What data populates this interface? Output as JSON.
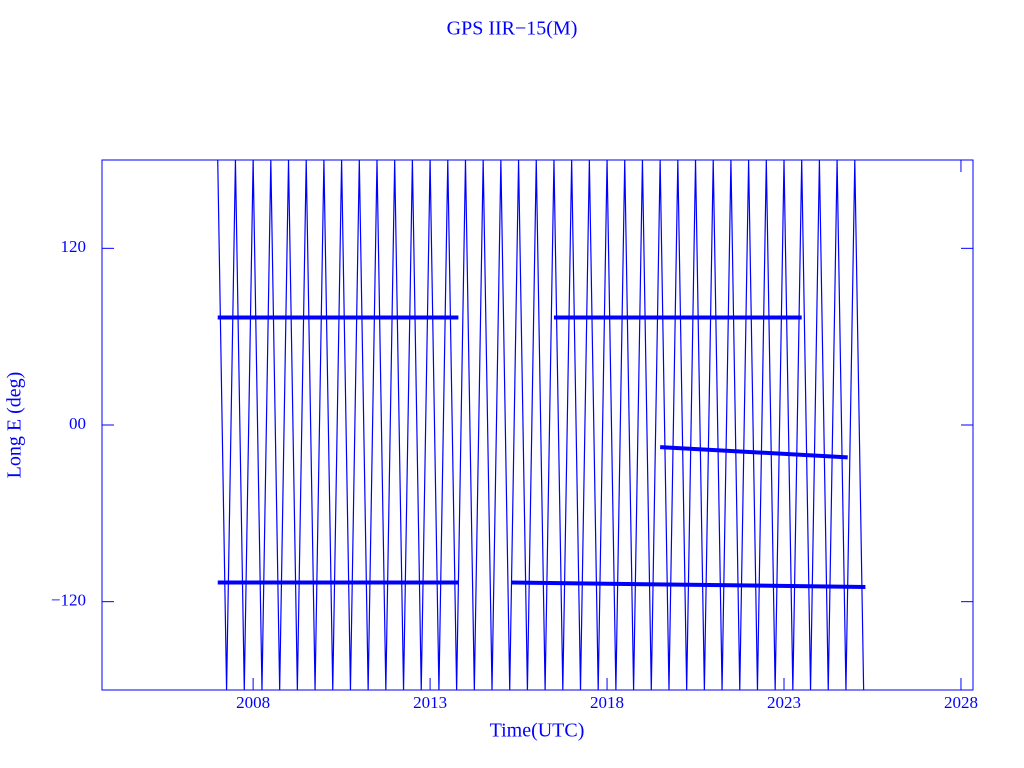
{
  "chart_data": {
    "type": "line",
    "title": "GPS IIR−15(M)",
    "xlabel": "Time(UTC)",
    "ylabel": "Long E (deg)",
    "xlim": [
      2003.73,
      2028.34
    ],
    "ylim": [
      -180,
      180
    ],
    "xticks": [
      2008,
      2013,
      2018,
      2023,
      2028
    ],
    "yticks": [
      {
        "value": 120,
        "label": "120"
      },
      {
        "value": 0,
        "label": "00"
      },
      {
        "value": -120,
        "label": "−120"
      }
    ],
    "color": "#0000ff",
    "series": [
      {
        "color": "#0000ff",
        "x": [
          2007,
          2007.25,
          2007.5,
          2007.75,
          2008,
          2008.25,
          2008.5,
          2008.75,
          2009,
          2009.25,
          2009.5,
          2009.75,
          2010,
          2010.25,
          2010.5,
          2010.75,
          2011,
          2011.25,
          2011.5,
          2011.75,
          2012,
          2012.25,
          2012.5,
          2012.75,
          2013,
          2013.25,
          2013.5,
          2013.75,
          2014,
          2014.25,
          2014.5,
          2014.75,
          2015,
          2015.25,
          2015.5,
          2015.75,
          2016,
          2016.25,
          2016.5,
          2016.75,
          2017,
          2017.25,
          2017.5,
          2017.75,
          2018,
          2018.25,
          2018.5,
          2018.75,
          2019,
          2019.25,
          2019.5,
          2019.75,
          2020,
          2020.25,
          2020.5,
          2020.75,
          2021,
          2021.25,
          2021.5,
          2021.75,
          2022,
          2022.25,
          2022.5,
          2022.75,
          2023,
          2023.25,
          2023.5,
          2023.75,
          2024,
          2024.25,
          2024.5,
          2024.75,
          2025,
          2025.25
        ],
        "values": [
          180,
          -180,
          180,
          -180,
          180,
          -180,
          180,
          -180,
          180,
          -180,
          180,
          -180,
          180,
          -180,
          180,
          -180,
          180,
          -180,
          180,
          -180,
          180,
          -180,
          180,
          -180,
          180,
          -180,
          180,
          -180,
          180,
          -180,
          180,
          -180,
          180,
          -180,
          180,
          -180,
          180,
          -180,
          180,
          -180,
          180,
          -180,
          180,
          -180,
          180,
          -180,
          180,
          -180,
          180,
          -180,
          180,
          -180,
          180,
          -180,
          180,
          -180,
          180,
          -180,
          180,
          -180,
          180,
          -180,
          180,
          -180,
          180,
          -180,
          180,
          -180,
          180,
          -180,
          180,
          -180,
          180,
          -180
        ]
      },
      {
        "color": "#0000ff",
        "x": [
          2007,
          2013.8
        ],
        "values": [
          73,
          73
        ]
      },
      {
        "color": "#0000ff",
        "x": [
          2007,
          2013.8
        ],
        "values": [
          -107,
          -107
        ]
      },
      {
        "color": "#0000ff",
        "x": [
          2015.3,
          2025.3
        ],
        "values": [
          -107,
          -110
        ]
      },
      {
        "color": "#0000ff",
        "x": [
          2019.5,
          2024.8
        ],
        "values": [
          -15,
          -22
        ]
      },
      {
        "color": "#0000ff",
        "x": [
          2016.5,
          2023.5
        ],
        "values": [
          73,
          73
        ]
      }
    ]
  }
}
